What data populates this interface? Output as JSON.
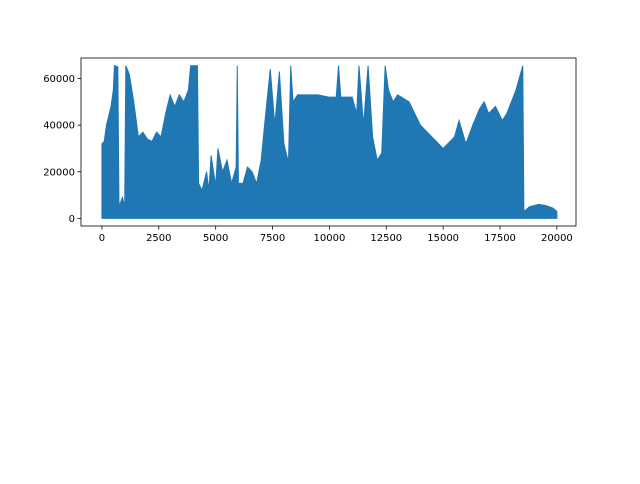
{
  "chart_data": {
    "type": "area",
    "color": "#1f77b4",
    "x": [
      0,
      100,
      200,
      400,
      500,
      550,
      700,
      750,
      900,
      1000,
      1050,
      1200,
      1400,
      1600,
      1800,
      2000,
      2200,
      2400,
      2600,
      2800,
      3000,
      3200,
      3400,
      3600,
      3800,
      3900,
      4200,
      4250,
      4400,
      4600,
      4700,
      4800,
      5000,
      5100,
      5300,
      5500,
      5700,
      5900,
      5950,
      6000,
      6200,
      6400,
      6600,
      6800,
      7000,
      7200,
      7400,
      7600,
      7800,
      8000,
      8200,
      8300,
      8400,
      8600,
      9000,
      9500,
      10000,
      10300,
      10400,
      10500,
      11000,
      11200,
      11300,
      11500,
      11700,
      11900,
      12100,
      12300,
      12450,
      12600,
      12800,
      13000,
      13500,
      14000,
      14500,
      15000,
      15500,
      15700,
      16000,
      16300,
      16600,
      16800,
      17000,
      17300,
      17600,
      17800,
      18200,
      18500,
      18550,
      18800,
      19200,
      19500,
      19800,
      20000
    ],
    "values": [
      32000,
      33000,
      40000,
      48000,
      55000,
      65500,
      65000,
      5000,
      9000,
      5000,
      65500,
      62000,
      50000,
      35000,
      37000,
      34000,
      33000,
      37000,
      35000,
      45000,
      53000,
      48000,
      53000,
      50000,
      55000,
      65500,
      65500,
      15000,
      12000,
      20000,
      12000,
      27000,
      14000,
      30000,
      20000,
      25000,
      15000,
      22000,
      65500,
      15000,
      15000,
      22000,
      20000,
      15000,
      25000,
      45000,
      64000,
      40000,
      63000,
      32000,
      24000,
      65500,
      50000,
      53000,
      53000,
      53000,
      52000,
      52000,
      65500,
      52000,
      52000,
      45000,
      65500,
      40000,
      65500,
      35000,
      25000,
      28000,
      65500,
      55000,
      50000,
      53000,
      50000,
      40000,
      35000,
      30000,
      35000,
      42000,
      32000,
      40000,
      47000,
      50000,
      45000,
      48000,
      42000,
      45000,
      55000,
      65500,
      3000,
      5000,
      6000,
      5500,
      4500,
      3000
    ],
    "xlim": [
      -920,
      20840
    ],
    "ylim": [
      -3277,
      68812
    ],
    "xticks": [
      0,
      2500,
      5000,
      7500,
      10000,
      12500,
      15000,
      17500,
      20000
    ],
    "yticks": [
      0,
      20000,
      40000,
      60000
    ]
  }
}
